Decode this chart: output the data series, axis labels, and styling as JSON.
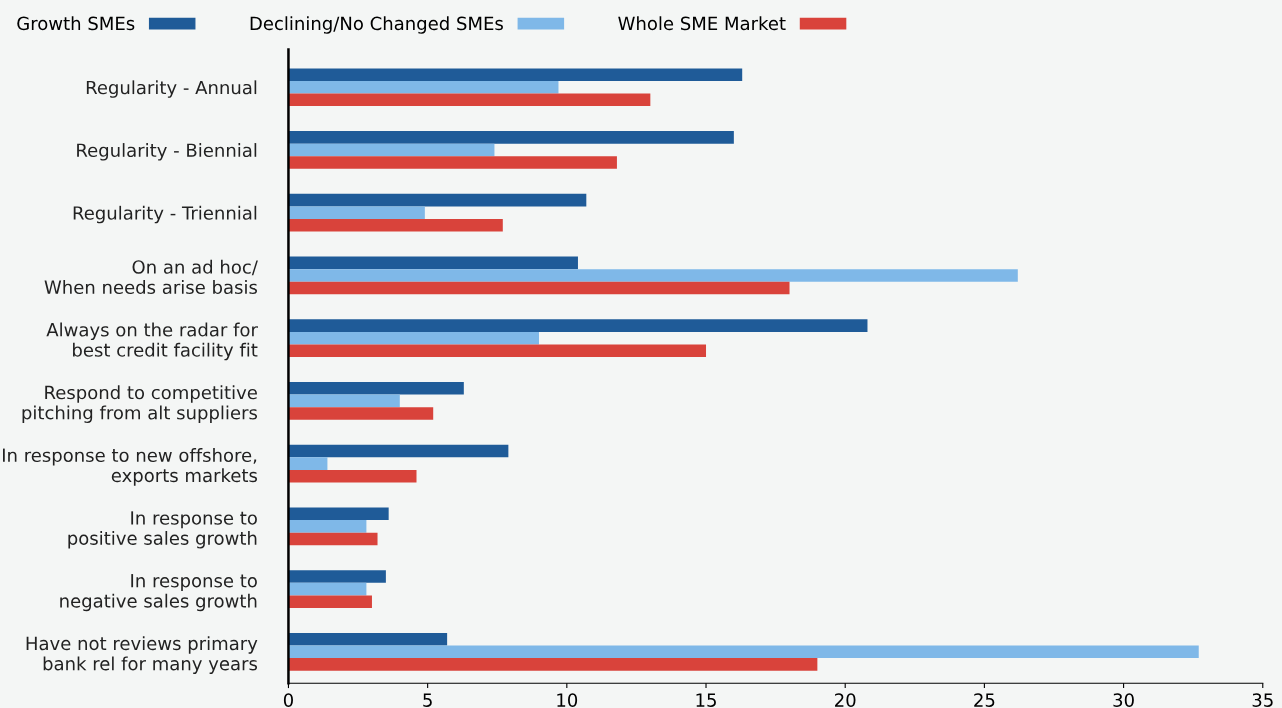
{
  "chart_data": {
    "type": "bar",
    "orientation": "horizontal",
    "categories": [
      "Regularity - Annual",
      "Regularity - Biennial",
      "Regularity - Triennial",
      "On an ad hoc/\nWhen needs arise basis",
      "Always on the radar for\nbest credit facility fit",
      "Respond to competitive\npitching from alt suppliers",
      "In response to new offshore,\nexports markets",
      "In response to\npositive sales growth",
      "In response to\nnegative sales growth",
      "Have not reviews primary\nbank rel for many years"
    ],
    "series": [
      {
        "name": "Growth SMEs",
        "color": "#1f5b98",
        "values": [
          16.3,
          16.0,
          10.7,
          10.4,
          20.8,
          6.3,
          7.9,
          3.6,
          3.5,
          5.7
        ]
      },
      {
        "name": "Declining/No Changed SMEs",
        "color": "#7fb8e8",
        "values": [
          9.7,
          7.4,
          4.9,
          26.2,
          9.0,
          4.0,
          1.4,
          2.8,
          2.8,
          32.7
        ]
      },
      {
        "name": "Whole SME Market",
        "color": "#d9433b",
        "values": [
          13.0,
          11.8,
          7.7,
          18.0,
          15.0,
          5.2,
          4.6,
          3.2,
          3.0,
          19.0
        ]
      }
    ],
    "xlim": [
      0,
      35
    ],
    "xticks": [
      0,
      5,
      10,
      15,
      20,
      25,
      30,
      35
    ],
    "grid": false,
    "legend": "top left"
  }
}
